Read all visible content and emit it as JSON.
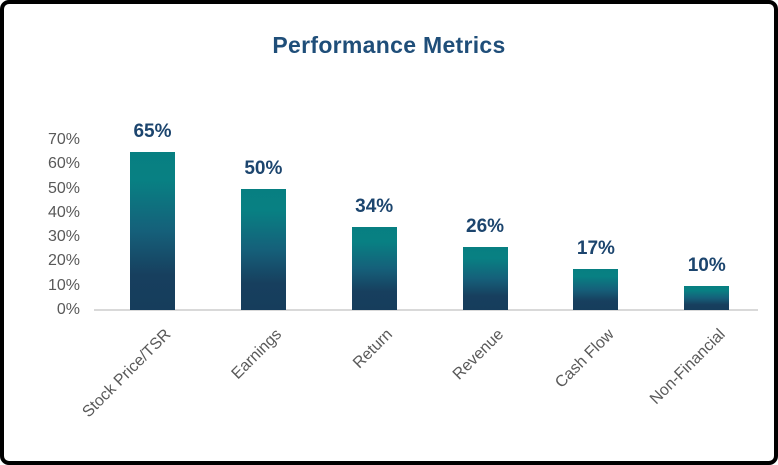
{
  "chart_data": {
    "type": "bar",
    "title": "Performance Metrics",
    "categories": [
      "Stock Price/TSR",
      "Earnings",
      "Return",
      "Revenue",
      "Cash Flow",
      "Non-Financial"
    ],
    "values": [
      65,
      50,
      34,
      26,
      17,
      10
    ],
    "data_labels": [
      "65%",
      "50%",
      "34%",
      "26%",
      "17%",
      "10%"
    ],
    "xlabel": "",
    "ylabel": "",
    "ylim": [
      0,
      70
    ],
    "y_ticks": [
      0,
      10,
      20,
      30,
      40,
      50,
      60,
      70
    ],
    "y_tick_suffix": "%",
    "grid": false,
    "legend": false,
    "colors": {
      "title": "#1F4E79",
      "data_label": "#1C456E",
      "axis_text": "#595959",
      "axis_line": "#D9D9D9",
      "bar_gradient": [
        "#077F81",
        "#088083",
        "#15607A",
        "#173F5E",
        "#163D5C"
      ],
      "frame_border": "#000000",
      "background": "#FFFFFF"
    }
  }
}
